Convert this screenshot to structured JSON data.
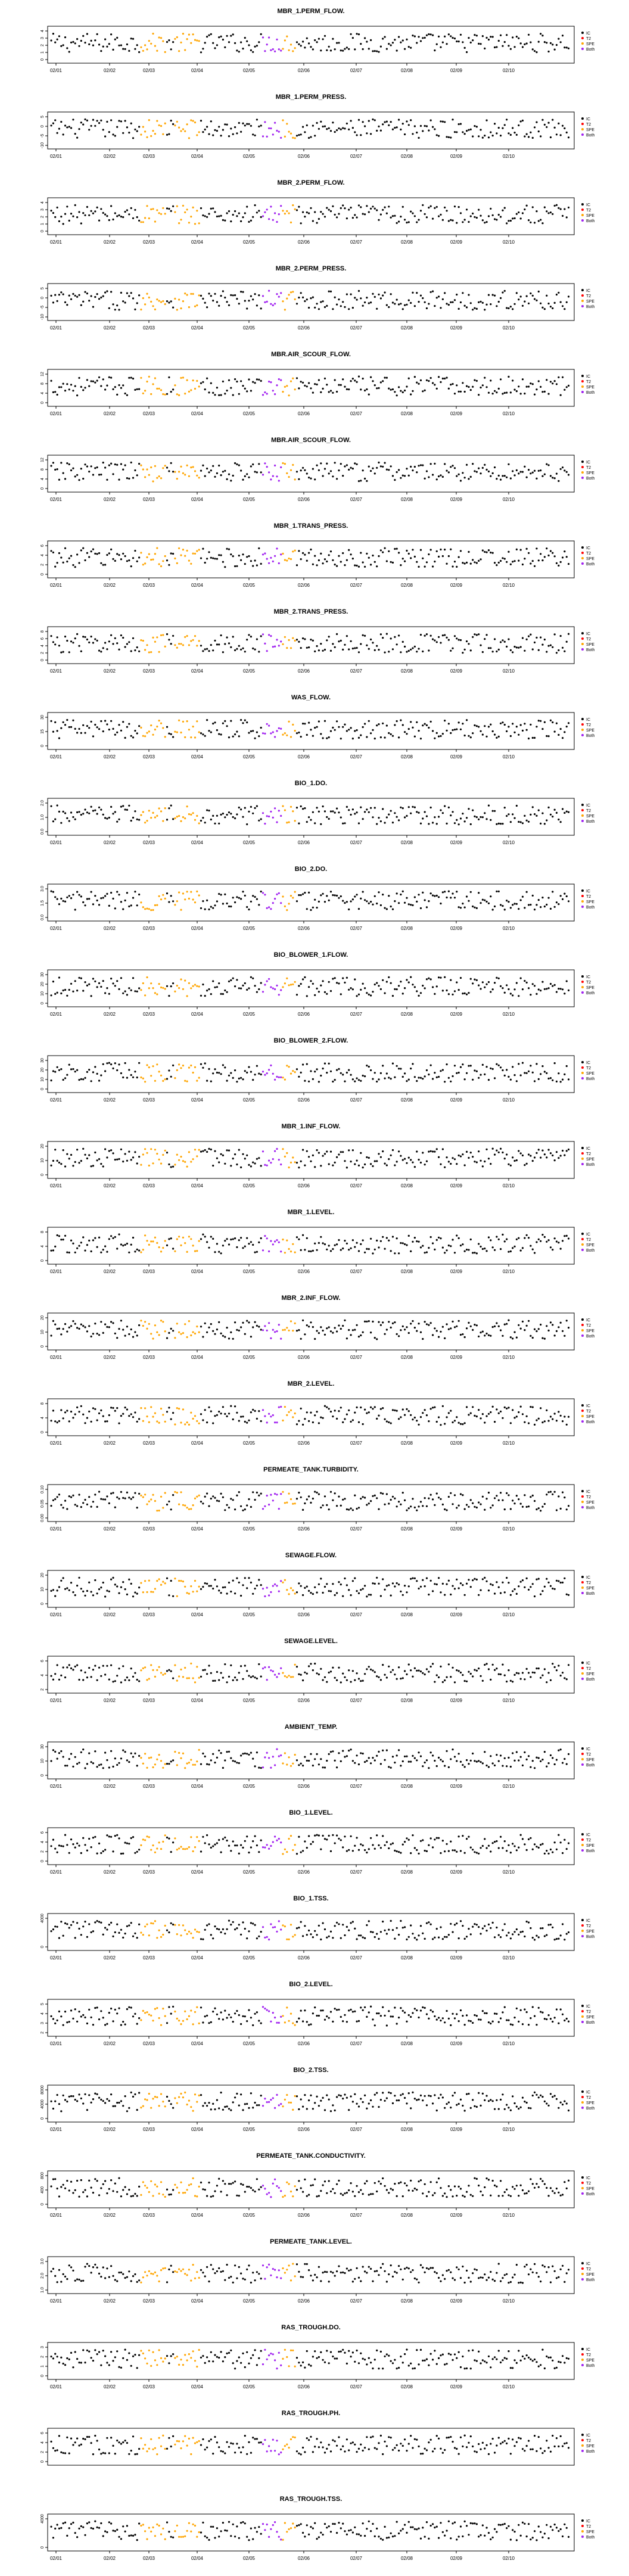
{
  "dates": [
    "02/01",
    "02/02",
    "02/03",
    "02/04",
    "02/05",
    "02/06",
    "02/07",
    "02/08",
    "02/09",
    "02/10"
  ],
  "legend": [
    {
      "label": "IC",
      "color": "#000000"
    },
    {
      "label": "T2",
      "color": "#ff0000"
    },
    {
      "label": "SPE",
      "color": "#ffa500"
    },
    {
      "label": "Both",
      "color": "#a020f0"
    }
  ],
  "chart_data": [
    {
      "type": "scatter",
      "title": "MBR_1.PERM_FLOW.",
      "yticks": [
        "0",
        "1",
        "2",
        "3",
        "4"
      ],
      "legend_entries": [
        "IC",
        "T2",
        "SPE",
        "Both"
      ],
      "show_xticks": true
    },
    {
      "type": "scatter",
      "title": "MBR_1.PERM_PRESS.",
      "yticks": [
        "-10",
        "-5",
        "0",
        "5"
      ],
      "legend_entries": [
        "IC",
        "T2",
        "SPE",
        "Both"
      ],
      "show_xticks": true
    },
    {
      "type": "scatter",
      "title": "MBR_2.PERM_FLOW.",
      "yticks": [
        "0",
        "1",
        "2",
        "3",
        "4"
      ],
      "legend_entries": [
        "IC",
        "T2",
        "SPE",
        "Both"
      ],
      "show_xticks": true
    },
    {
      "type": "scatter",
      "title": "MBR_2.PERM_PRESS.",
      "yticks": [
        "-10",
        "-5",
        "0",
        "5"
      ],
      "legend_entries": [
        "IC",
        "T2",
        "SPE",
        "Both"
      ],
      "show_xticks": true
    },
    {
      "type": "scatter",
      "title": "MBR.AIR_SCOUR_FLOW.",
      "yticks": [
        "0",
        "4",
        "8",
        "12"
      ],
      "legend_entries": [
        "IC",
        "T2",
        "SPE",
        "Both"
      ],
      "show_xticks": true
    },
    {
      "type": "scatter",
      "title": "MBR.AIR_SCOUR_FLOW.",
      "yticks": [
        "0",
        "4",
        "8",
        "12"
      ],
      "legend_entries": [
        "IC",
        "T2",
        "SPE",
        "Both"
      ],
      "show_xticks": true
    },
    {
      "type": "scatter",
      "title": "MBR_1.TRANS_PRESS.",
      "yticks": [
        "0",
        "2",
        "4",
        "6"
      ],
      "legend_entries": [
        "IC",
        "T2",
        "SPE",
        "Both"
      ],
      "show_xticks": true
    },
    {
      "type": "scatter",
      "title": "MBR_2.TRANS_PRESS.",
      "yticks": [
        "0",
        "2",
        "4",
        "6",
        "8"
      ],
      "legend_entries": [
        "IC",
        "T2",
        "SPE",
        "Both"
      ],
      "show_xticks": true
    },
    {
      "type": "scatter",
      "title": "WAS_FLOW.",
      "yticks": [
        "0",
        "15",
        "30"
      ],
      "legend_entries": [
        "IC",
        "T2",
        "SPE",
        "Both"
      ],
      "show_xticks": true
    },
    {
      "type": "scatter",
      "title": "BIO_1.DO.",
      "yticks": [
        "0.0",
        "1.0",
        "2.0"
      ],
      "legend_entries": [
        "IC",
        "T2",
        "SPE",
        "Both"
      ],
      "show_xticks": true
    },
    {
      "type": "scatter",
      "title": "BIO_2.DO.",
      "yticks": [
        "0.0",
        "1.5",
        "3.0"
      ],
      "legend_entries": [
        "IC",
        "T2",
        "SPE",
        "Both"
      ],
      "show_xticks": true
    },
    {
      "type": "scatter",
      "title": "BIO_BLOWER_1.FLOW.",
      "yticks": [
        "0",
        "10",
        "20",
        "30"
      ],
      "legend_entries": [
        "IC",
        "T2",
        "SPE",
        "Both"
      ],
      "show_xticks": true
    },
    {
      "type": "scatter",
      "title": "BIO_BLOWER_2.FLOW.",
      "yticks": [
        "0",
        "10",
        "20",
        "30"
      ],
      "legend_entries": [
        "IC",
        "T2",
        "SPE",
        "Both"
      ],
      "show_xticks": true
    },
    {
      "type": "scatter",
      "title": "MBR_1.INF_FLOW.",
      "yticks": [
        "0",
        "10",
        "20"
      ],
      "legend_entries": [
        "IC",
        "T2",
        "SPE",
        "Both"
      ],
      "show_xticks": true
    },
    {
      "type": "scatter",
      "title": "MBR_1.LEVEL.",
      "yticks": [
        "0",
        "4",
        "8"
      ],
      "legend_entries": [
        "IC",
        "T2",
        "SPE",
        "Both"
      ],
      "show_xticks": true
    },
    {
      "type": "scatter",
      "title": "MBR_2.INF_FLOW.",
      "yticks": [
        "0",
        "10",
        "20"
      ],
      "legend_entries": [
        "IC",
        "T2",
        "SPE",
        "Both"
      ],
      "show_xticks": true
    },
    {
      "type": "scatter",
      "title": "MBR_2.LEVEL.",
      "yticks": [
        "0",
        "4",
        "8"
      ],
      "legend_entries": [
        "IC",
        "T2",
        "SPE",
        "Both"
      ],
      "show_xticks": true
    },
    {
      "type": "scatter",
      "title": "PERMEATE_TANK.TURBIDITY.",
      "yticks": [
        "0.00",
        "0.05",
        "0.10"
      ],
      "legend_entries": [
        "IC",
        "T2",
        "SPE",
        "Both"
      ],
      "show_xticks": true
    },
    {
      "type": "scatter",
      "title": "SEWAGE.FLOW.",
      "yticks": [
        "0",
        "10",
        "20"
      ],
      "legend_entries": [
        "IC",
        "T2",
        "SPE",
        "Both"
      ],
      "show_xticks": true
    },
    {
      "type": "scatter",
      "title": "SEWAGE.LEVEL.",
      "yticks": [
        "2",
        "4",
        "6"
      ],
      "legend_entries": [
        "IC",
        "T2",
        "SPE",
        "Both"
      ],
      "show_xticks": true
    },
    {
      "type": "scatter",
      "title": "AMBIENT_TEMP.",
      "yticks": [
        "0",
        "10",
        "30"
      ],
      "legend_entries": [
        "IC",
        "T2",
        "SPE",
        "Both"
      ],
      "show_xticks": true
    },
    {
      "type": "scatter",
      "title": "BIO_1.LEVEL.",
      "yticks": [
        "0",
        "2",
        "4",
        "6"
      ],
      "legend_entries": [
        "IC",
        "T2",
        "SPE",
        "Both"
      ],
      "show_xticks": true
    },
    {
      "type": "scatter",
      "title": "BIO_1.TSS.",
      "yticks": [
        "0",
        "4000"
      ],
      "legend_entries": [
        "IC",
        "T2",
        "SPE",
        "Both"
      ],
      "show_xticks": true
    },
    {
      "type": "scatter",
      "title": "BIO_2.LEVEL.",
      "yticks": [
        "2",
        "3",
        "4",
        "5"
      ],
      "legend_entries": [
        "IC",
        "T2",
        "SPE",
        "Both"
      ],
      "show_xticks": true
    },
    {
      "type": "scatter",
      "title": "BIO_2.TSS.",
      "yticks": [
        "0",
        "4000",
        "8000"
      ],
      "legend_entries": [
        "IC",
        "T2",
        "SPE",
        "Both"
      ],
      "show_xticks": true
    },
    {
      "type": "scatter",
      "title": "PERMEATE_TANK.CONDUCTIVITY.",
      "yticks": [
        "0",
        "400",
        "800"
      ],
      "legend_entries": [
        "IC",
        "T2",
        "SPE",
        "Both"
      ],
      "show_xticks": true
    },
    {
      "type": "scatter",
      "title": "PERMEATE_TANK.LEVEL.",
      "yticks": [
        "1.0",
        "2.0",
        "3.0"
      ],
      "legend_entries": [
        "IC",
        "T2",
        "SPE",
        "Both"
      ],
      "show_xticks": true
    },
    {
      "type": "scatter",
      "title": "RAS_TROUGH.DO.",
      "yticks": [
        "0",
        "1",
        "2",
        "3"
      ],
      "legend_entries": [
        "IC",
        "T2",
        "SPE",
        "Both"
      ],
      "show_xticks": true
    },
    {
      "type": "scatter",
      "title": "RAS_TROUGH.PH.",
      "yticks": [
        "0",
        "2",
        "4",
        "6"
      ],
      "legend_entries": [
        "IC",
        "T2",
        "SPE",
        "Both"
      ],
      "show_xticks": false
    },
    {
      "type": "scatter",
      "title": "RAS_TROUGH.TSS.",
      "yticks": [
        "0",
        "4000"
      ],
      "legend_entries": [
        "IC",
        "T2",
        "SPE",
        "Both"
      ],
      "show_xticks": true
    }
  ]
}
